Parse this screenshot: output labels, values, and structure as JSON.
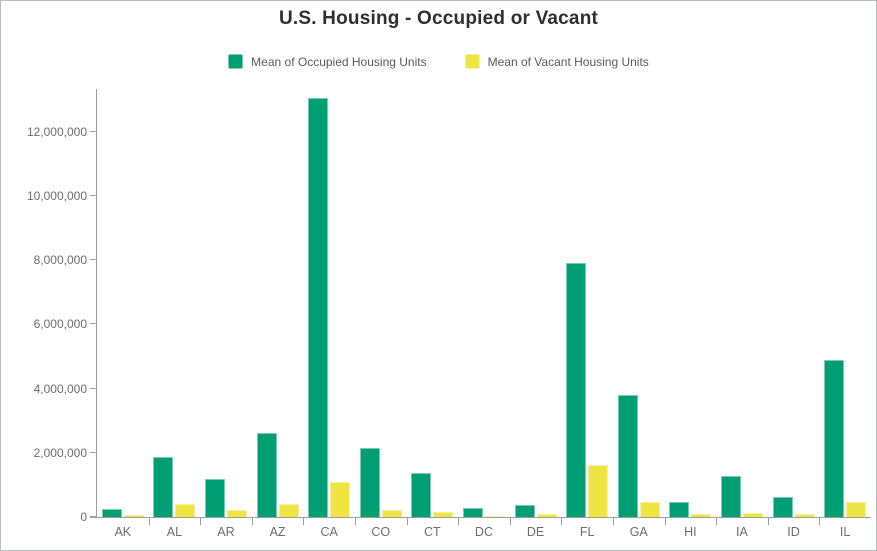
{
  "title": "U.S. Housing - Occupied or Vacant",
  "legend": [
    {
      "label": "Mean of Occupied Housing Units",
      "color": "#009e73",
      "border": "#7fccb4"
    },
    {
      "label": "Mean of Vacant Housing Units",
      "color": "#f0e442",
      "border": "#f6f0a3"
    }
  ],
  "colors": {
    "axis": "#9b9fa2",
    "tick_label": "#6e6e6e",
    "title_text": "#2f2f2f",
    "legend_text": "#5a5a5a",
    "canvas_border": "#b9bcbf",
    "background": "#ffffff"
  },
  "chart_data": {
    "type": "bar",
    "title": "U.S. Housing - Occupied or Vacant",
    "xlabel": "",
    "ylabel": "",
    "grid": false,
    "legend_position": "top",
    "categories": [
      "AK",
      "AL",
      "AR",
      "AZ",
      "CA",
      "CO",
      "CT",
      "DC",
      "DE",
      "FL",
      "GA",
      "HI",
      "IA",
      "ID",
      "IL"
    ],
    "series": [
      {
        "name": "Mean of Occupied Housing Units",
        "color": "#009e73",
        "values": [
          250000,
          1880000,
          1170000,
          2630000,
          13050000,
          2150000,
          1380000,
          280000,
          360000,
          7900000,
          3800000,
          460000,
          1280000,
          630000,
          4880000
        ]
      },
      {
        "name": "Mean of Vacant Housing Units",
        "color": "#f0e442",
        "values": [
          50000,
          400000,
          210000,
          390000,
          1090000,
          220000,
          160000,
          40000,
          80000,
          1620000,
          480000,
          90000,
          140000,
          100000,
          480000
        ]
      }
    ],
    "ylim": [
      0,
      13200000
    ],
    "yticks": [
      0,
      2000000,
      4000000,
      6000000,
      8000000,
      10000000,
      12000000
    ],
    "ytick_labels": [
      "0",
      "2,000,000",
      "4,000,000",
      "6,000,000",
      "8,000,000",
      "10,000,000",
      "12,000,000"
    ]
  }
}
